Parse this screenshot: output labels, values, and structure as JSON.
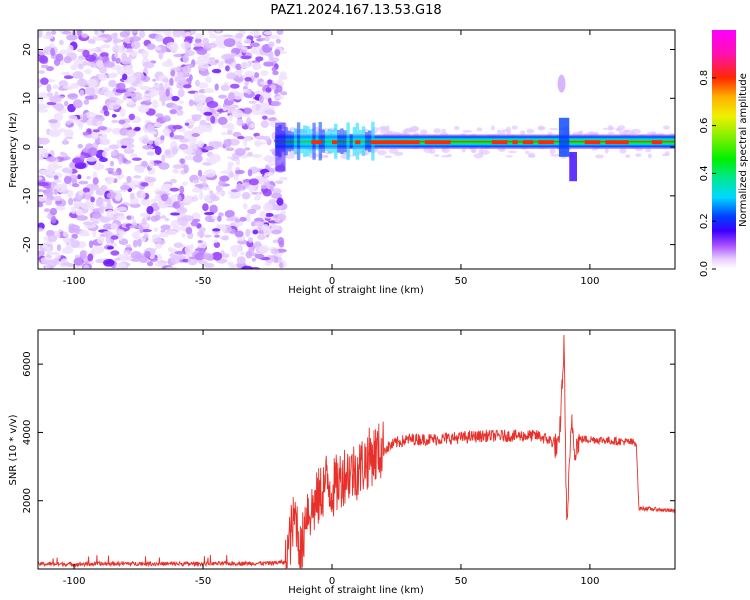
{
  "figure": {
    "title": "PAZ1.2024.167.13.53.G18"
  },
  "colors": {
    "snr_line": "#e8302a",
    "axes": "#000000"
  },
  "chart_data": [
    {
      "type": "heatmap",
      "xlabel": "Height of straight line (km)",
      "ylabel": "Frequency (Hz)",
      "xlim": [
        -114,
        133
      ],
      "ylim": [
        -25,
        24
      ],
      "x_ticks": [
        -100,
        -50,
        0,
        50,
        100
      ],
      "y_ticks": [
        -20,
        -10,
        0,
        10,
        20
      ],
      "colormap": "gist_ncar",
      "colorbar": {
        "label": "Normalized spectral amplitude",
        "range": [
          0,
          1
        ],
        "ticks": [
          0.0,
          0.2,
          0.4,
          0.6,
          0.8
        ]
      },
      "regions": [
        {
          "x_range": [
            -114,
            -22
          ],
          "pattern": "scattered noise, amplitude ~0.05–0.3"
        },
        {
          "x_range": [
            -22,
            133
          ],
          "pattern": "narrow band centered near 1 Hz, amplitude up to ~1"
        },
        {
          "x_range": [
            86,
            94
          ],
          "pattern": "disturbance spanning about -6 to 15 Hz"
        }
      ]
    },
    {
      "type": "line",
      "xlabel": "Height of straight line (km)",
      "ylabel": "SNR (10 * v/v)",
      "xlim": [
        -114,
        133
      ],
      "ylim": [
        0,
        7000
      ],
      "x_ticks": [
        -100,
        -50,
        0,
        50,
        100
      ],
      "y_ticks": [
        2000,
        4000,
        6000
      ],
      "series": [
        {
          "x": [
            -114,
            -100,
            -80,
            -60,
            -40,
            -25,
            -18,
            -16,
            -14,
            -12,
            -10,
            -8,
            -5,
            -2,
            0,
            5,
            10,
            15,
            20,
            25,
            30,
            40,
            50,
            60,
            70,
            80,
            85,
            88,
            90,
            91,
            92,
            93,
            94,
            96,
            100,
            110,
            118,
            119,
            120,
            125,
            133
          ],
          "y": [
            150,
            140,
            160,
            150,
            160,
            170,
            200,
            1000,
            1600,
            300,
            1800,
            1700,
            2100,
            2600,
            2300,
            2800,
            2900,
            3300,
            3500,
            3700,
            3800,
            3800,
            3850,
            3900,
            3900,
            3900,
            3750,
            3500,
            6600,
            1200,
            2800,
            4400,
            3500,
            3800,
            3800,
            3750,
            3700,
            1750,
            1780,
            1750,
            1700
          ]
        }
      ]
    }
  ]
}
